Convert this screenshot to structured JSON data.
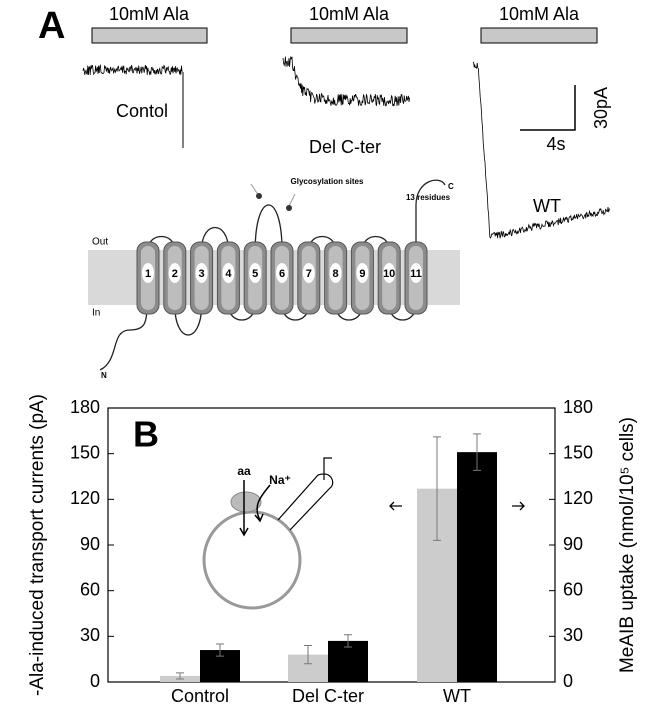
{
  "panel_a": {
    "label": "A",
    "traces": [
      {
        "stimulus": "10mM Ala",
        "label": "Contol"
      },
      {
        "stimulus": "10mM Ala",
        "label": "Del C-ter"
      },
      {
        "stimulus": "10mM Ala",
        "label": "WT"
      }
    ],
    "scale_bar": {
      "y": "30pA",
      "x": "4s"
    },
    "topology": {
      "out": "Out",
      "in": "In",
      "segments": [
        "1",
        "2",
        "3",
        "4",
        "5",
        "6",
        "7",
        "8",
        "9",
        "10",
        "11"
      ],
      "glycosylation": "Glycosylation sites",
      "residues": "13 residues",
      "n": "N",
      "c": "C"
    }
  },
  "chart_data": {
    "type": "bar",
    "label": "B",
    "categories": [
      "Control",
      "Del C-ter",
      "WT"
    ],
    "series": [
      {
        "color": "#cccccc",
        "values": [
          4,
          18,
          127
        ],
        "errors": [
          2,
          6,
          34
        ]
      },
      {
        "color": "#000000",
        "values": [
          21,
          27,
          151
        ],
        "errors": [
          4,
          4,
          12
        ],
        "axis": "y2"
      }
    ],
    "ylabel": "-Ala-induced transport currents (pA)",
    "y2label": "MeAIB uptake (nmol/10⁵ cells)",
    "ylim": [
      0,
      180
    ],
    "yticks": [
      0,
      30,
      60,
      90,
      120,
      150,
      180
    ],
    "y2lim": [
      0,
      180
    ],
    "y2ticks": [
      0,
      30,
      60,
      90,
      120,
      150,
      180
    ],
    "inset": {
      "substrate": "aa",
      "ion": "Na⁺"
    }
  }
}
